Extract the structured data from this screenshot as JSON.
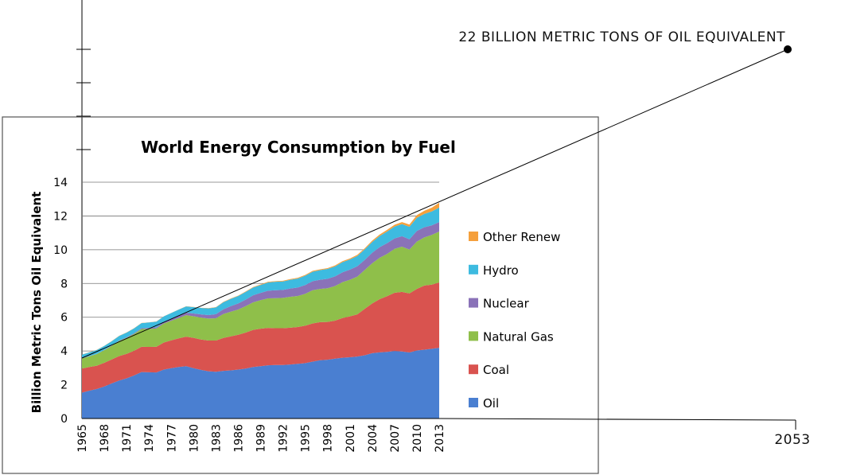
{
  "chart_data": {
    "type": "area",
    "title": "World Energy Consumption by Fuel",
    "xlabel": "",
    "ylabel": "Billion Metric Tons Oil Equivalent",
    "ylim": [
      0,
      14
    ],
    "yticks": [
      0,
      2,
      4,
      6,
      8,
      10,
      12,
      14
    ],
    "grid": true,
    "legend_position": "right",
    "x": [
      1965,
      1966,
      1967,
      1968,
      1969,
      1970,
      1971,
      1972,
      1973,
      1974,
      1975,
      1976,
      1977,
      1978,
      1979,
      1980,
      1981,
      1982,
      1983,
      1984,
      1985,
      1986,
      1987,
      1988,
      1989,
      1990,
      1991,
      1992,
      1993,
      1994,
      1995,
      1996,
      1997,
      1998,
      1999,
      2000,
      2001,
      2002,
      2003,
      2004,
      2005,
      2006,
      2007,
      2008,
      2009,
      2010,
      2011,
      2012,
      2013
    ],
    "xtick_labels": [
      "1965",
      "1968",
      "1971",
      "1974",
      "1977",
      "1980",
      "1983",
      "1986",
      "1989",
      "1992",
      "1995",
      "1998",
      "2001",
      "2004",
      "2007",
      "2010",
      "2013"
    ],
    "series": [
      {
        "name": "Oil",
        "color": "#4a7fd1",
        "values": [
          1.53,
          1.65,
          1.75,
          1.9,
          2.08,
          2.25,
          2.38,
          2.55,
          2.75,
          2.74,
          2.73,
          2.9,
          2.98,
          3.05,
          3.1,
          2.98,
          2.88,
          2.8,
          2.77,
          2.82,
          2.85,
          2.9,
          2.96,
          3.05,
          3.1,
          3.15,
          3.17,
          3.17,
          3.2,
          3.24,
          3.28,
          3.37,
          3.45,
          3.48,
          3.55,
          3.6,
          3.63,
          3.67,
          3.75,
          3.87,
          3.92,
          3.95,
          4.0,
          3.97,
          3.91,
          4.03,
          4.08,
          4.13,
          4.19
        ]
      },
      {
        "name": "Coal",
        "color": "#d9534f",
        "values": [
          1.43,
          1.4,
          1.38,
          1.4,
          1.42,
          1.45,
          1.45,
          1.46,
          1.5,
          1.5,
          1.52,
          1.6,
          1.65,
          1.7,
          1.75,
          1.8,
          1.8,
          1.82,
          1.85,
          1.95,
          2.02,
          2.06,
          2.13,
          2.2,
          2.22,
          2.22,
          2.18,
          2.18,
          2.18,
          2.18,
          2.22,
          2.26,
          2.26,
          2.24,
          2.25,
          2.35,
          2.42,
          2.5,
          2.75,
          2.95,
          3.15,
          3.3,
          3.45,
          3.53,
          3.5,
          3.65,
          3.8,
          3.8,
          3.87
        ]
      },
      {
        "name": "Natural Gas",
        "color": "#8fbf4a",
        "values": [
          0.6,
          0.64,
          0.69,
          0.75,
          0.81,
          0.9,
          0.95,
          1.0,
          1.05,
          1.07,
          1.08,
          1.13,
          1.16,
          1.2,
          1.27,
          1.28,
          1.3,
          1.3,
          1.32,
          1.42,
          1.46,
          1.5,
          1.57,
          1.63,
          1.69,
          1.75,
          1.78,
          1.8,
          1.83,
          1.84,
          1.89,
          1.97,
          1.97,
          2.0,
          2.05,
          2.13,
          2.17,
          2.24,
          2.3,
          2.38,
          2.45,
          2.5,
          2.6,
          2.68,
          2.6,
          2.8,
          2.85,
          2.95,
          3.02
        ]
      },
      {
        "name": "Nuclear",
        "color": "#8a72b8",
        "values": [
          0.01,
          0.01,
          0.01,
          0.01,
          0.02,
          0.02,
          0.03,
          0.04,
          0.05,
          0.06,
          0.08,
          0.09,
          0.12,
          0.14,
          0.15,
          0.16,
          0.19,
          0.21,
          0.24,
          0.28,
          0.33,
          0.36,
          0.39,
          0.42,
          0.43,
          0.45,
          0.47,
          0.47,
          0.49,
          0.5,
          0.52,
          0.54,
          0.54,
          0.56,
          0.57,
          0.58,
          0.6,
          0.61,
          0.6,
          0.62,
          0.63,
          0.64,
          0.62,
          0.62,
          0.61,
          0.63,
          0.6,
          0.56,
          0.56
        ]
      },
      {
        "name": "Hydro",
        "color": "#3dbbe0",
        "values": [
          0.21,
          0.22,
          0.23,
          0.24,
          0.25,
          0.27,
          0.28,
          0.29,
          0.3,
          0.32,
          0.33,
          0.33,
          0.34,
          0.36,
          0.37,
          0.38,
          0.38,
          0.39,
          0.4,
          0.42,
          0.43,
          0.44,
          0.45,
          0.46,
          0.47,
          0.49,
          0.5,
          0.5,
          0.52,
          0.53,
          0.55,
          0.56,
          0.57,
          0.58,
          0.59,
          0.6,
          0.6,
          0.61,
          0.62,
          0.64,
          0.66,
          0.69,
          0.7,
          0.72,
          0.74,
          0.78,
          0.79,
          0.83,
          0.86
        ]
      },
      {
        "name": "Other Renew",
        "color": "#f5a03c",
        "values": [
          0.01,
          0.01,
          0.01,
          0.01,
          0.01,
          0.01,
          0.01,
          0.01,
          0.01,
          0.01,
          0.01,
          0.01,
          0.01,
          0.01,
          0.01,
          0.01,
          0.01,
          0.02,
          0.02,
          0.02,
          0.02,
          0.02,
          0.03,
          0.03,
          0.03,
          0.04,
          0.04,
          0.04,
          0.04,
          0.05,
          0.05,
          0.05,
          0.05,
          0.05,
          0.06,
          0.06,
          0.06,
          0.07,
          0.07,
          0.08,
          0.09,
          0.1,
          0.11,
          0.12,
          0.13,
          0.16,
          0.19,
          0.22,
          0.28
        ]
      }
    ],
    "legend_order": [
      "Other Renew",
      "Hydro",
      "Nuclear",
      "Natural Gas",
      "Coal",
      "Oil"
    ],
    "annotations": {
      "extrapolation_label": "22 BILLION METRIC TONS OF OIL EQUIVALENT",
      "end_year_label": "2053"
    }
  }
}
